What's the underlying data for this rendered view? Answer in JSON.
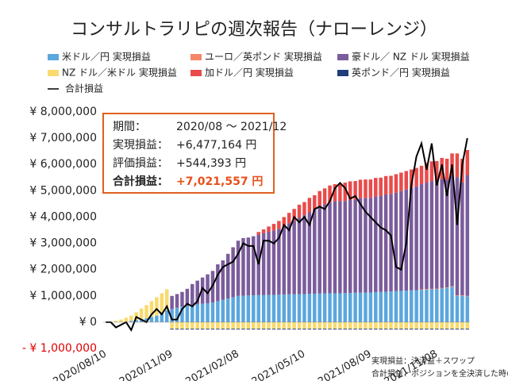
{
  "chart_data": {
    "type": "stacked_bar_line",
    "title": "コンサルトラリピの週次報告（ナローレンジ）",
    "categories": [
      "2020/08/10",
      null,
      null,
      null,
      null,
      null,
      null,
      null,
      null,
      null,
      null,
      null,
      null,
      "2020/11/09",
      null,
      null,
      null,
      null,
      null,
      null,
      null,
      null,
      null,
      null,
      null,
      null,
      "2021/02/08",
      null,
      null,
      null,
      null,
      null,
      null,
      null,
      null,
      null,
      null,
      null,
      null,
      "2021/05/10",
      null,
      null,
      null,
      null,
      null,
      null,
      null,
      null,
      null,
      null,
      null,
      null,
      "2021/08/09",
      null,
      null,
      null,
      null,
      null,
      null,
      null,
      null,
      null,
      null,
      null,
      null,
      "2021/11/08",
      null,
      null,
      null,
      null,
      null,
      null
    ],
    "series": [
      {
        "name": "米ドル／円 実現損益",
        "color": "#5ba7de",
        "values": [
          0,
          0,
          0,
          0,
          20000,
          50000,
          80000,
          120000,
          150000,
          200000,
          250000,
          350000,
          450000,
          500000,
          550000,
          600000,
          620000,
          650000,
          680000,
          700000,
          720000,
          750000,
          800000,
          850000,
          900000,
          950000,
          1000000,
          1000000,
          1020000,
          1020000,
          1030000,
          1030000,
          1040000,
          1040000,
          1050000,
          1050000,
          1060000,
          1060000,
          1070000,
          1070000,
          1080000,
          1080000,
          1090000,
          1090000,
          1100000,
          1100000,
          1100000,
          1110000,
          1110000,
          1120000,
          1120000,
          1130000,
          1130000,
          1140000,
          1150000,
          1160000,
          1170000,
          1180000,
          1190000,
          1200000,
          1210000,
          1220000,
          1230000,
          1240000,
          1250000,
          1260000,
          1280000,
          1300000,
          1350000,
          1000000,
          1000000,
          980000
        ]
      },
      {
        "name": "ユーロ／英ポンド 実現損益",
        "color": "#f4876a",
        "values": [
          0,
          0,
          0,
          0,
          0,
          0,
          0,
          0,
          0,
          0,
          0,
          0,
          0,
          0,
          0,
          0,
          0,
          0,
          0,
          0,
          0,
          0,
          0,
          0,
          0,
          0,
          0,
          0,
          0,
          0,
          0,
          0,
          0,
          0,
          0,
          0,
          0,
          0,
          0,
          0,
          0,
          0,
          0,
          0,
          0,
          0,
          0,
          0,
          0,
          0,
          0,
          0,
          0,
          0,
          0,
          0,
          0,
          0,
          0,
          0,
          0,
          0,
          20000,
          20000,
          20000,
          20000,
          20000,
          20000,
          20000,
          20000,
          20000,
          20000
        ]
      },
      {
        "name": "豪ドル／ NZ ドル 実現損益",
        "color": "#7b5c9c",
        "values": [
          0,
          0,
          0,
          0,
          0,
          0,
          0,
          0,
          0,
          0,
          0,
          0,
          0,
          500000,
          520000,
          550000,
          650000,
          800000,
          900000,
          1000000,
          1100000,
          1200000,
          1400000,
          1500000,
          1700000,
          1900000,
          2100000,
          2200000,
          2200000,
          2250000,
          2300000,
          2350000,
          2400000,
          2450000,
          2500000,
          2600000,
          2700000,
          2800000,
          2900000,
          3000000,
          3100000,
          3200000,
          3300000,
          3400000,
          3450000,
          3500000,
          3500000,
          3500000,
          3550000,
          3550000,
          3600000,
          3600000,
          3600000,
          3650000,
          3650000,
          3700000,
          3700000,
          3750000,
          3800000,
          3850000,
          3900000,
          3950000,
          4000000,
          4050000,
          4100000,
          4100000,
          4150000,
          4100000,
          4200000,
          4500000,
          4300000,
          4600000
        ]
      },
      {
        "name": "NZ ドル／米ドル 実現損益",
        "color": "#f9da6e",
        "values": [
          0,
          0,
          50000,
          100000,
          150000,
          200000,
          300000,
          400000,
          500000,
          600000,
          700000,
          750000,
          800000,
          -250000,
          -250000,
          -250000,
          -250000,
          -250000,
          -250000,
          -250000,
          -250000,
          -250000,
          -250000,
          -250000,
          -250000,
          -250000,
          -250000,
          -250000,
          -250000,
          -250000,
          -250000,
          -250000,
          -250000,
          -250000,
          -250000,
          -250000,
          -250000,
          -250000,
          -250000,
          -250000,
          -250000,
          -250000,
          -250000,
          -250000,
          -250000,
          -250000,
          -250000,
          -250000,
          -250000,
          -250000,
          -250000,
          -250000,
          -250000,
          -250000,
          -250000,
          -250000,
          -250000,
          -250000,
          -250000,
          -250000,
          -250000,
          -250000,
          -250000,
          -250000,
          -250000,
          -250000,
          -250000,
          -250000,
          -250000,
          -250000,
          -250000,
          -250000
        ]
      },
      {
        "name": "加ドル／円 実現損益",
        "color": "#e94b4b",
        "values": [
          0,
          0,
          0,
          0,
          0,
          0,
          0,
          0,
          0,
          0,
          0,
          0,
          0,
          0,
          0,
          0,
          0,
          0,
          0,
          0,
          0,
          0,
          0,
          0,
          0,
          0,
          0,
          0,
          0,
          0,
          100000,
          150000,
          200000,
          250000,
          300000,
          350000,
          400000,
          450000,
          500000,
          500000,
          550000,
          550000,
          600000,
          600000,
          650000,
          650000,
          650000,
          700000,
          700000,
          700000,
          700000,
          700000,
          700000,
          700000,
          700000,
          700000,
          700000,
          700000,
          700000,
          700000,
          700000,
          700000,
          700000,
          750000,
          750000,
          750000,
          800000,
          800000,
          850000,
          900000,
          900000,
          950000
        ]
      },
      {
        "name": "英ポンド／円 実現損益",
        "color": "#1f3d7b",
        "values": [
          0,
          0,
          0,
          0,
          0,
          0,
          0,
          0,
          0,
          0,
          0,
          0,
          0,
          -30000,
          -30000,
          -30000,
          -30000,
          -30000,
          -30000,
          -30000,
          -30000,
          -30000,
          -30000,
          -30000,
          -30000,
          -30000,
          -30000,
          -30000,
          -30000,
          -30000,
          -30000,
          -30000,
          -30000,
          -30000,
          -30000,
          -30000,
          -30000,
          -30000,
          -30000,
          -30000,
          -30000,
          -30000,
          -30000,
          -30000,
          -30000,
          -30000,
          -30000,
          -30000,
          -30000,
          -30000,
          -30000,
          -30000,
          -30000,
          -30000,
          -30000,
          -30000,
          -30000,
          -30000,
          -30000,
          -30000,
          -30000,
          -30000,
          -30000,
          -30000,
          -30000,
          -30000,
          -30000,
          -30000,
          -30000,
          -30000,
          -30000,
          -30000
        ]
      }
    ],
    "line_series": {
      "name": "合計損益",
      "color": "#000000",
      "values": [
        0,
        0,
        -200000,
        -100000,
        0,
        -300000,
        200000,
        100000,
        0,
        300000,
        500000,
        300000,
        600000,
        100000,
        100000,
        500000,
        700000,
        600000,
        800000,
        1300000,
        1100000,
        1400000,
        1800000,
        2100000,
        2200000,
        2300000,
        2600000,
        3000000,
        2900000,
        2900000,
        2200000,
        3100000,
        3100000,
        3000000,
        3200000,
        3700000,
        3500000,
        4000000,
        3800000,
        4000000,
        3700000,
        4300000,
        4400000,
        4300000,
        4600000,
        5100000,
        5300000,
        5100000,
        4700000,
        4800000,
        4500000,
        4200000,
        4000000,
        3800000,
        3600000,
        3500000,
        3300000,
        2100000,
        2000000,
        3000000,
        5200000,
        6300000,
        6800000,
        5800000,
        6800000,
        5200000,
        6000000,
        4800000,
        6000000,
        3700000,
        6000000,
        7000000
      ]
    },
    "ylim": [
      -1000000,
      8000000
    ],
    "yticks": [
      {
        "value": -1000000,
        "label": "- ¥ 1,000,000"
      },
      {
        "value": 0,
        "label": "¥ 0"
      },
      {
        "value": 1000000,
        "label": "¥ 1,000,000"
      },
      {
        "value": 2000000,
        "label": "¥ 2,000,000"
      },
      {
        "value": 3000000,
        "label": "¥ 3,000,000"
      },
      {
        "value": 4000000,
        "label": "¥ 4,000,000"
      },
      {
        "value": 5000000,
        "label": "¥ 5,000,000"
      },
      {
        "value": 6000000,
        "label": "¥ 6,000,000"
      },
      {
        "value": 7000000,
        "label": "¥ 7,000,000"
      },
      {
        "value": 8000000,
        "label": "¥ 8,000,000"
      }
    ],
    "negative_tick_color": "#e00000",
    "grid": false,
    "info_box": [
      {
        "label": "期間：",
        "value": "2020/08 ～ 2021/12"
      },
      {
        "label": "実現損益：",
        "value": "+6,477,164 円"
      },
      {
        "label": "評価損益：",
        "value": "+544,393 円"
      },
      {
        "label": "合計損益：",
        "value": "+7,021,557 円"
      }
    ],
    "info_box_highlight_color": "#e8501a",
    "footnotes": [
      "実現損益：決済益＋スワップ",
      "合計損益：ポジションを全決済した時の損益"
    ]
  }
}
